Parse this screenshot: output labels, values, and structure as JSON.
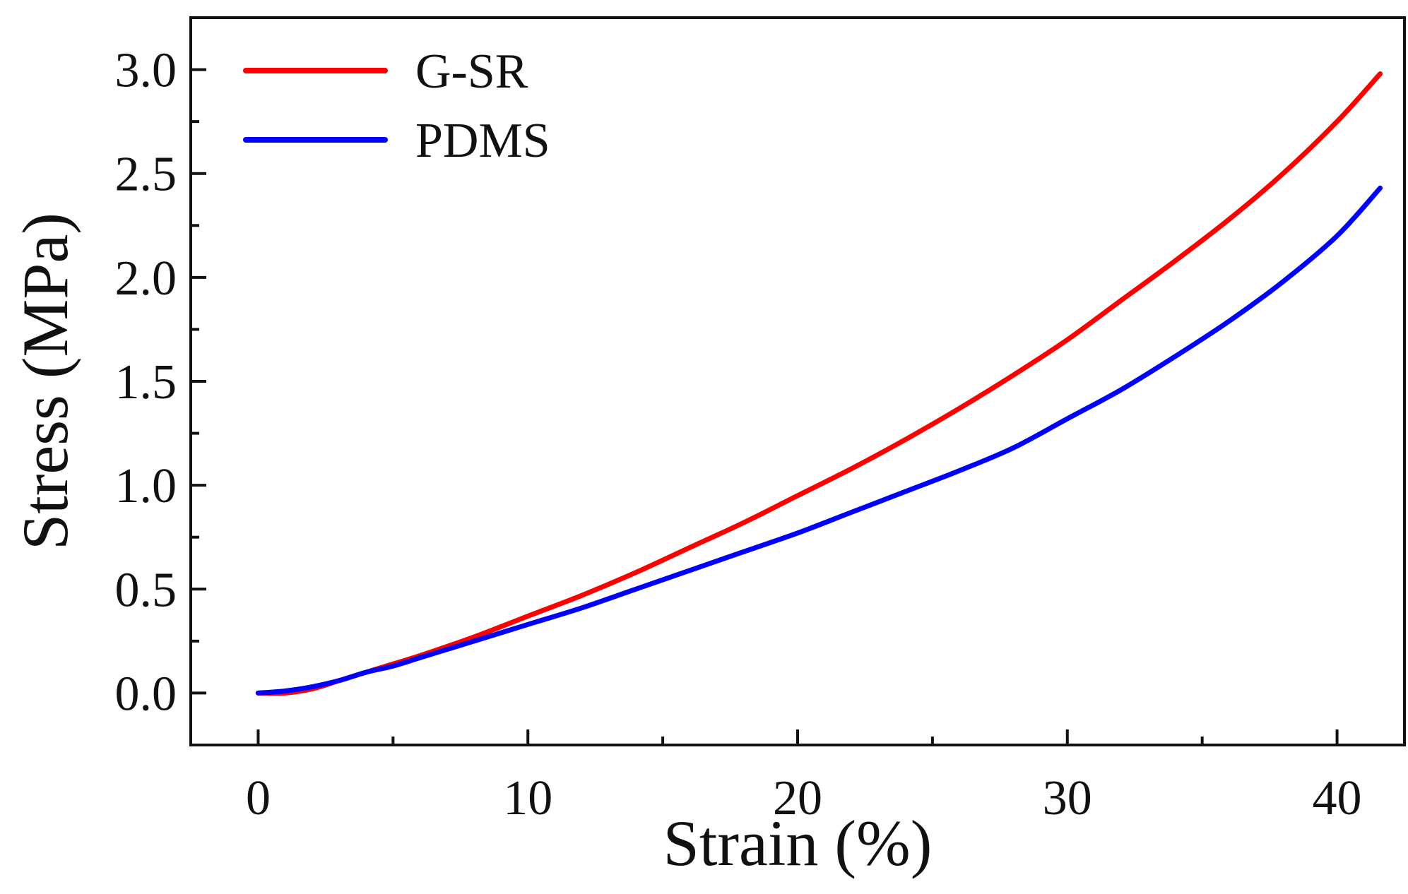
{
  "chart_data": {
    "type": "line",
    "xlabel": "Strain (%)",
    "ylabel": "Stress (MPa)",
    "xlim": [
      -2.5,
      42.5
    ],
    "ylim": [
      -0.25,
      3.25
    ],
    "x_ticks": [
      0,
      10,
      20,
      30,
      40
    ],
    "x_tick_labels": [
      "0",
      "10",
      "20",
      "30",
      "40"
    ],
    "x_minor_ticks": [
      5,
      15,
      25,
      35
    ],
    "y_ticks": [
      0.0,
      0.5,
      1.0,
      1.5,
      2.0,
      2.5,
      3.0
    ],
    "y_tick_labels": [
      "0.0",
      "0.5",
      "1.0",
      "1.5",
      "2.0",
      "2.5",
      "3.0"
    ],
    "y_minor_ticks": [
      0.25,
      0.75,
      1.25,
      1.75,
      2.25,
      2.75
    ],
    "grid": false,
    "legend_position": "top-left",
    "series": [
      {
        "name": "G-SR",
        "color": "#ff0000",
        "x": [
          0,
          1,
          2,
          3,
          4,
          5,
          6,
          8,
          10,
          12,
          14,
          16,
          18,
          20,
          22,
          24,
          26,
          28,
          30,
          32,
          34,
          36,
          38,
          40,
          41.6
        ],
        "y": [
          0.0,
          0.0,
          0.02,
          0.06,
          0.1,
          0.14,
          0.18,
          0.27,
          0.37,
          0.47,
          0.58,
          0.7,
          0.82,
          0.95,
          1.08,
          1.22,
          1.37,
          1.53,
          1.7,
          1.89,
          2.08,
          2.28,
          2.5,
          2.75,
          2.98
        ]
      },
      {
        "name": "PDMS",
        "color": "#0000ff",
        "x": [
          0,
          1,
          2,
          3,
          4,
          5,
          6,
          8,
          10,
          12,
          14,
          16,
          18,
          20,
          22,
          24,
          26,
          28,
          30,
          32,
          34,
          36,
          38,
          40,
          41.6
        ],
        "y": [
          0.0,
          0.01,
          0.03,
          0.06,
          0.1,
          0.13,
          0.17,
          0.25,
          0.33,
          0.41,
          0.5,
          0.59,
          0.68,
          0.77,
          0.87,
          0.97,
          1.07,
          1.18,
          1.32,
          1.46,
          1.62,
          1.79,
          1.98,
          2.2,
          2.43
        ]
      }
    ]
  }
}
